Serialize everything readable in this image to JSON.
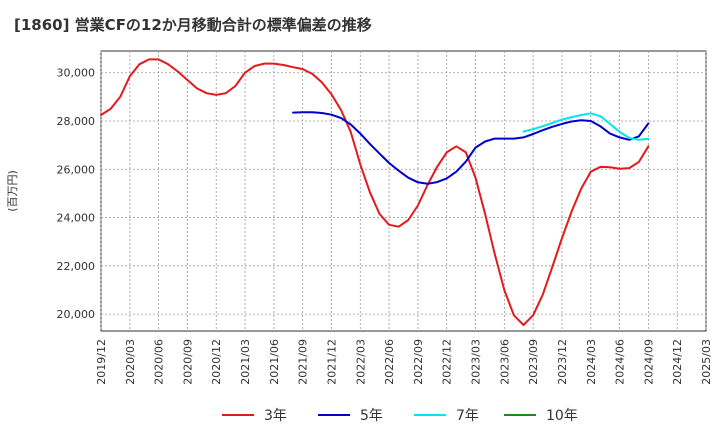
{
  "chart_data": {
    "type": "line",
    "title": "[1860]  営業CFの12か月移動合計の標準偏差の推移",
    "ylabel": "(百万円)",
    "xlabel": "",
    "ylim": [
      19300,
      30900
    ],
    "yticks": [
      20000,
      22000,
      24000,
      26000,
      28000,
      30000
    ],
    "ytick_labels": [
      "20,000",
      "22,000",
      "24,000",
      "26,000",
      "28,000",
      "30,000"
    ],
    "x_tick_labels": [
      "2019/12",
      "2020/03",
      "2020/06",
      "2020/09",
      "2020/12",
      "2021/03",
      "2021/06",
      "2021/09",
      "2021/12",
      "2022/03",
      "2022/06",
      "2022/09",
      "2022/12",
      "2023/03",
      "2023/06",
      "2023/09",
      "2023/12",
      "2024/03",
      "2024/06",
      "2024/09",
      "2024/12",
      "2025/03"
    ],
    "x_start": "2019/12",
    "grid": true,
    "legend_position": "bottom",
    "series": [
      {
        "name": "3年",
        "color": "#e31a1c",
        "start": "2019/12",
        "values": [
          28250,
          28500,
          29000,
          29850,
          30350,
          30550,
          30550,
          30350,
          30050,
          29700,
          29350,
          29150,
          29080,
          29150,
          29450,
          30000,
          30280,
          30380,
          30380,
          30320,
          30230,
          30150,
          29950,
          29600,
          29100,
          28450,
          27550,
          26200,
          25050,
          24150,
          23700,
          23620,
          23900,
          24500,
          25350,
          26100,
          26700,
          26950,
          26700,
          25650,
          24150,
          22500,
          21000,
          19950,
          19550,
          19950,
          20800,
          21950,
          23150,
          24250,
          25200,
          25900,
          26100,
          26080,
          26020,
          26050,
          26300,
          26950
        ]
      },
      {
        "name": "5年",
        "color": "#0000cc",
        "start": "2021/08",
        "values": [
          28350,
          28360,
          28360,
          28330,
          28260,
          28120,
          27860,
          27480,
          27050,
          26650,
          26260,
          25940,
          25650,
          25460,
          25400,
          25470,
          25620,
          25900,
          26320,
          26900,
          27150,
          27270,
          27270,
          27270,
          27320,
          27460,
          27620,
          27760,
          27880,
          27980,
          28030,
          28000,
          27780,
          27480,
          27320,
          27220,
          27360,
          27900
        ]
      },
      {
        "name": "7年",
        "color": "#00e5ee",
        "start": "2023/08",
        "values": [
          27560,
          27660,
          27780,
          27920,
          28060,
          28160,
          28250,
          28320,
          28200,
          27880,
          27550,
          27300,
          27220,
          27260
        ]
      },
      {
        "name": "10年",
        "color": "#1a8a1a",
        "start": "2024/09",
        "values": []
      }
    ]
  }
}
